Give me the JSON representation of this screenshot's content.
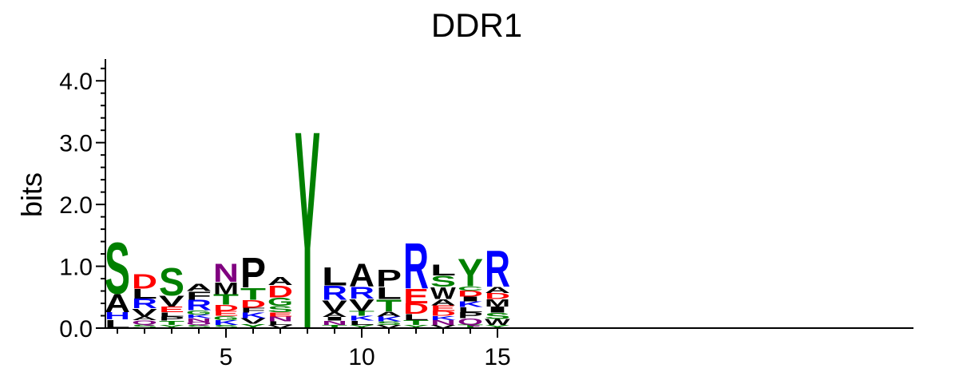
{
  "chart_data": {
    "type": "sequence-logo",
    "title": "DDR1",
    "xlabel": "",
    "ylabel": "bits",
    "ylim": [
      0,
      4.3
    ],
    "yticks": [
      "0.0",
      "1.0",
      "2.0",
      "3.0",
      "4.0"
    ],
    "xticks": [
      5,
      10,
      15
    ],
    "colors": {
      "acidic": "#ff0000",
      "basic": "#0000ff",
      "hydrophobic": "#000000",
      "polar": "#008000",
      "amide": "#800080"
    },
    "positions": [
      {
        "pos": 1,
        "letters": [
          [
            "L",
            0.14,
            "hydrophobic"
          ],
          [
            "H",
            0.12,
            "basic"
          ],
          [
            "A",
            0.3,
            "hydrophobic"
          ],
          [
            "S",
            0.85,
            "polar"
          ]
        ]
      },
      {
        "pos": 2,
        "letters": [
          [
            "S",
            0.06,
            "polar"
          ],
          [
            "Q",
            0.07,
            "amide"
          ],
          [
            "A",
            0.06,
            "hydrophobic"
          ],
          [
            "V",
            0.13,
            "hydrophobic"
          ],
          [
            "R",
            0.16,
            "basic"
          ],
          [
            "L",
            0.16,
            "hydrophobic"
          ],
          [
            "D",
            0.24,
            "acidic"
          ]
        ]
      },
      {
        "pos": 3,
        "letters": [
          [
            "Y",
            0.05,
            "polar"
          ],
          [
            "T",
            0.07,
            "polar"
          ],
          [
            "P",
            0.07,
            "hydrophobic"
          ],
          [
            "L",
            0.07,
            "hydrophobic"
          ],
          [
            "E",
            0.09,
            "acidic"
          ],
          [
            "V",
            0.18,
            "hydrophobic"
          ],
          [
            "S",
            0.46,
            "polar"
          ]
        ]
      },
      {
        "pos": 4,
        "letters": [
          [
            "S",
            0.05,
            "polar"
          ],
          [
            "Q",
            0.05,
            "amide"
          ],
          [
            "N",
            0.06,
            "amide"
          ],
          [
            "K",
            0.06,
            "basic"
          ],
          [
            "G",
            0.07,
            "polar"
          ],
          [
            "R",
            0.17,
            "basic"
          ],
          [
            "F",
            0.14,
            "hydrophobic"
          ],
          [
            "A",
            0.12,
            "hydrophobic"
          ]
        ]
      },
      {
        "pos": 5,
        "letters": [
          [
            "S",
            0.05,
            "polar"
          ],
          [
            "K",
            0.08,
            "basic"
          ],
          [
            "G",
            0.07,
            "polar"
          ],
          [
            "E",
            0.08,
            "acidic"
          ],
          [
            "D",
            0.1,
            "acidic"
          ],
          [
            "T",
            0.17,
            "polar"
          ],
          [
            "M",
            0.2,
            "hydrophobic"
          ],
          [
            "N",
            0.3,
            "amide"
          ]
        ]
      },
      {
        "pos": 6,
        "letters": [
          [
            "Y",
            0.07,
            "polar"
          ],
          [
            "V",
            0.09,
            "hydrophobic"
          ],
          [
            "K",
            0.09,
            "basic"
          ],
          [
            "F",
            0.08,
            "hydrophobic"
          ],
          [
            "D",
            0.13,
            "acidic"
          ],
          [
            "T",
            0.2,
            "polar"
          ],
          [
            "P",
            0.5,
            "hydrophobic"
          ]
        ]
      },
      {
        "pos": 7,
        "letters": [
          [
            "V",
            0.05,
            "hydrophobic"
          ],
          [
            "L",
            0.06,
            "hydrophobic"
          ],
          [
            "N",
            0.08,
            "amide"
          ],
          [
            "E",
            0.07,
            "acidic"
          ],
          [
            "S",
            0.1,
            "polar"
          ],
          [
            "G",
            0.14,
            "polar"
          ],
          [
            "D",
            0.2,
            "acidic"
          ],
          [
            "A",
            0.14,
            "hydrophobic"
          ]
        ]
      },
      {
        "pos": 8,
        "letters": [
          [
            "Y",
            3.3,
            "polar"
          ]
        ]
      },
      {
        "pos": 9,
        "letters": [
          [
            "T",
            0.05,
            "polar"
          ],
          [
            "N",
            0.07,
            "amide"
          ],
          [
            "I",
            0.06,
            "hydrophobic"
          ],
          [
            "A",
            0.08,
            "hydrophobic"
          ],
          [
            "V",
            0.2,
            "hydrophobic"
          ],
          [
            "R",
            0.23,
            "basic"
          ],
          [
            "L",
            0.3,
            "hydrophobic"
          ]
        ]
      },
      {
        "pos": 10,
        "letters": [
          [
            "Y",
            0.05,
            "polar"
          ],
          [
            "L",
            0.07,
            "hydrophobic"
          ],
          [
            "K",
            0.08,
            "basic"
          ],
          [
            "T",
            0.08,
            "polar"
          ],
          [
            "V",
            0.2,
            "hydrophobic"
          ],
          [
            "R",
            0.2,
            "basic"
          ],
          [
            "A",
            0.38,
            "hydrophobic"
          ]
        ]
      },
      {
        "pos": 11,
        "letters": [
          [
            "V",
            0.05,
            "hydrophobic"
          ],
          [
            "S",
            0.06,
            "polar"
          ],
          [
            "K",
            0.08,
            "basic"
          ],
          [
            "A",
            0.08,
            "hydrophobic"
          ],
          [
            "T",
            0.2,
            "polar"
          ],
          [
            "L",
            0.2,
            "hydrophobic"
          ],
          [
            "P",
            0.28,
            "hydrophobic"
          ]
        ]
      },
      {
        "pos": 12,
        "letters": [
          [
            "Y",
            0.05,
            "polar"
          ],
          [
            "T",
            0.08,
            "polar"
          ],
          [
            "L",
            0.1,
            "hydrophobic"
          ],
          [
            "D",
            0.17,
            "acidic"
          ],
          [
            "E",
            0.24,
            "acidic"
          ],
          [
            "R",
            0.76,
            "basic"
          ]
        ]
      },
      {
        "pos": 13,
        "letters": [
          [
            "V",
            0.05,
            "hydrophobic"
          ],
          [
            "N",
            0.08,
            "amide"
          ],
          [
            "K",
            0.07,
            "basic"
          ],
          [
            "D",
            0.08,
            "acidic"
          ],
          [
            "E",
            0.09,
            "acidic"
          ],
          [
            "A",
            0.1,
            "hydrophobic"
          ],
          [
            "W",
            0.2,
            "hydrophobic"
          ],
          [
            "S",
            0.18,
            "polar"
          ],
          [
            "L",
            0.18,
            "hydrophobic"
          ]
        ]
      },
      {
        "pos": 14,
        "letters": [
          [
            "T",
            0.06,
            "polar"
          ],
          [
            "Q",
            0.1,
            "amide"
          ],
          [
            "P",
            0.1,
            "hydrophobic"
          ],
          [
            "L",
            0.08,
            "hydrophobic"
          ],
          [
            "K",
            0.09,
            "basic"
          ],
          [
            "I",
            0.08,
            "hydrophobic"
          ],
          [
            "D",
            0.1,
            "acidic"
          ],
          [
            "C",
            0.07,
            "polar"
          ],
          [
            "Y",
            0.46,
            "polar"
          ]
        ]
      },
      {
        "pos": 15,
        "letters": [
          [
            "Y",
            0.05,
            "polar"
          ],
          [
            "W",
            0.1,
            "hydrophobic"
          ],
          [
            "S",
            0.1,
            "polar"
          ],
          [
            "I",
            0.1,
            "hydrophobic"
          ],
          [
            "M",
            0.12,
            "hydrophobic"
          ],
          [
            "D",
            0.1,
            "acidic"
          ],
          [
            "A",
            0.1,
            "hydrophobic"
          ],
          [
            "R",
            0.6,
            "basic"
          ]
        ]
      }
    ]
  }
}
